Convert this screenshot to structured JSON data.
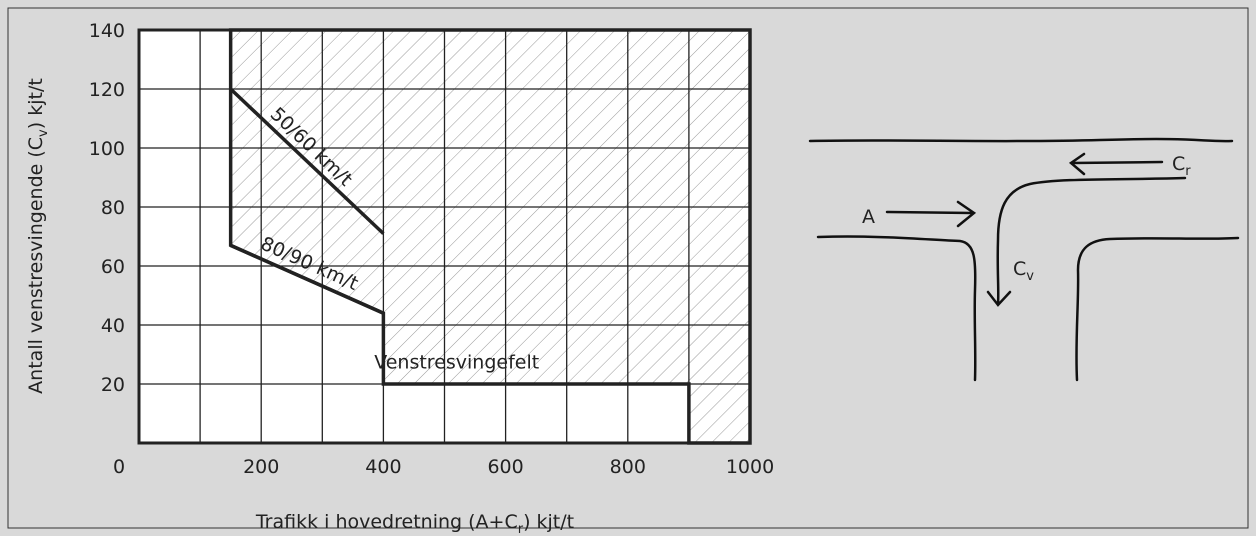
{
  "chart_data": {
    "type": "line",
    "x_label": [
      "Trafikk i hovedretning (A+C",
      "r",
      ") kjt/t"
    ],
    "y_label": [
      "Antall venstresvingende (C",
      "v",
      ") kjt/t"
    ],
    "xlim": [
      0,
      1000
    ],
    "ylim": [
      0,
      140
    ],
    "xticks": [
      0,
      200,
      400,
      600,
      800,
      1000
    ],
    "xminor": [
      100,
      300,
      500,
      700,
      900
    ],
    "yticks": [
      20,
      40,
      60,
      80,
      100,
      120,
      140
    ],
    "grid": true,
    "region": {
      "label": "Venstresvingefelt",
      "color": "#222222",
      "x": [
        150,
        1000,
        1000,
        900,
        900,
        400,
        400,
        150
      ],
      "y": [
        140,
        140,
        0,
        0,
        20,
        20,
        44,
        67
      ]
    },
    "series": [
      {
        "name": "50/60 km/t",
        "color": "#222222",
        "x": [
          150,
          400
        ],
        "values": [
          120,
          71
        ]
      },
      {
        "name": "80/90 km/t",
        "color": "#222222",
        "x": [
          150,
          400
        ],
        "values": [
          67,
          44
        ]
      }
    ]
  },
  "diagram": {
    "a": "A",
    "cr": [
      "C",
      "r"
    ],
    "cv": [
      "C",
      "v"
    ]
  }
}
